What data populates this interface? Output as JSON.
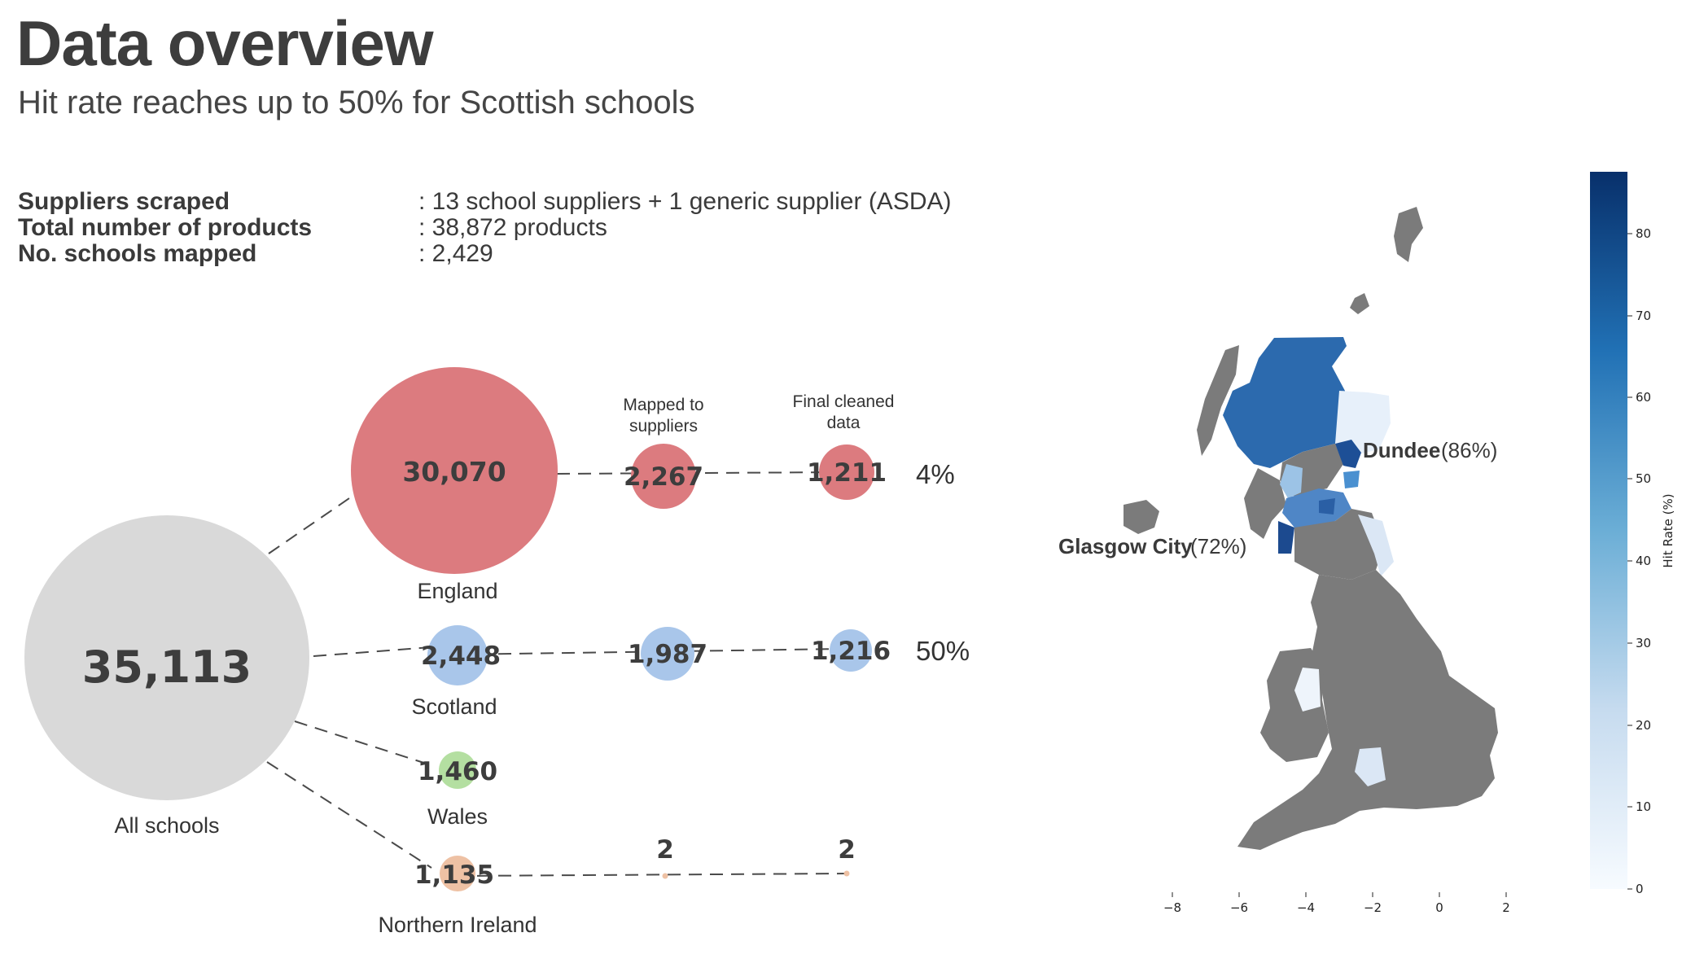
{
  "header": {
    "title": "Data overview",
    "subtitle": "Hit rate reaches up to 50% for Scottish schools"
  },
  "stats": [
    {
      "label": "Suppliers scraped",
      "value": ": 13 school suppliers + 1 generic supplier (ASDA)"
    },
    {
      "label": "Total number of products",
      "value": ": 38,872 products"
    },
    {
      "label": "No. schools mapped",
      "value": ": 2,429"
    }
  ],
  "funnel": {
    "total": {
      "label": "All schools",
      "value": "35,113"
    },
    "column_headers": {
      "mapped": [
        "Mapped to",
        "suppliers"
      ],
      "final": [
        "Final cleaned",
        "data"
      ]
    },
    "regions": [
      {
        "name": "England",
        "all": "30,070",
        "mapped": "2,267",
        "final": "1,211",
        "hit_rate": "4%",
        "color": "#dc7b7f"
      },
      {
        "name": "Scotland",
        "all": "2,448",
        "mapped": "1,987",
        "final": "1,216",
        "hit_rate": "50%",
        "color": "#a9c6ea"
      },
      {
        "name": "Wales",
        "all": "1,460",
        "color": "#b4dfa1"
      },
      {
        "name": "Northern Ireland",
        "all": "1,135",
        "mapped": "2",
        "final": "2",
        "color": "#eec1a4"
      }
    ]
  },
  "map": {
    "annotations": [
      {
        "name": "Dundee",
        "detail": "(86%)"
      },
      {
        "name": "Glasgow City",
        "detail": "(72%)"
      }
    ],
    "x_ticks": [
      "−8",
      "−6",
      "−4",
      "−2",
      "0",
      "2"
    ],
    "colorbar": {
      "label": "Hit Rate (%)",
      "ticks": [
        "0",
        "10",
        "20",
        "30",
        "40",
        "50",
        "60",
        "70",
        "80"
      ],
      "color_low": "#f7fbff",
      "color_high": "#08306b"
    },
    "no_data_color": "#7b7b7b"
  }
}
